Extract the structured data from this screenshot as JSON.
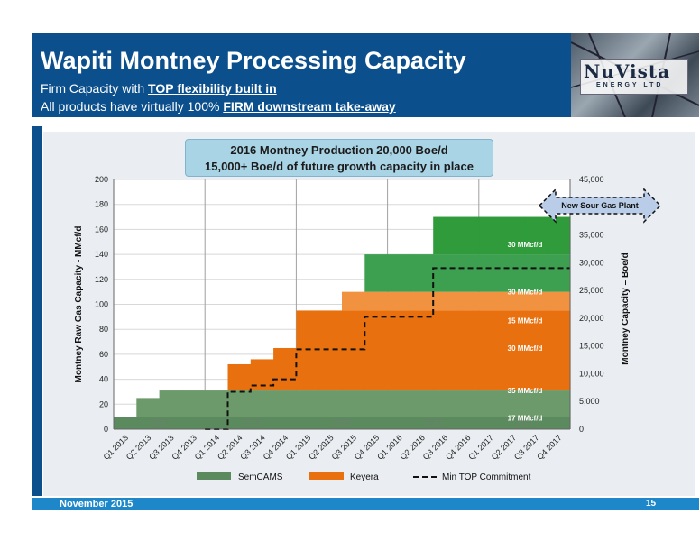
{
  "header": {
    "title": "Wapiti Montney Processing Capacity",
    "subtitle1_prefix": "Firm Capacity with ",
    "subtitle1_emph": "TOP flexibility built in",
    "subtitle2_prefix": "All products have virtually 100% ",
    "subtitle2_emph": "FIRM downstream take-away",
    "brand_color": "#0b4f8c"
  },
  "logo": {
    "main": "NuVista",
    "sub": "ENERGY LTD"
  },
  "callout": {
    "line1": "2016 Montney Production 20,000 Boe/d",
    "line2": "15,000+ Boe/d of future growth capacity in place"
  },
  "footer": {
    "date": "November 2015",
    "page": "15"
  },
  "chart_data": {
    "type": "area",
    "title": "",
    "ylabel": "Montney Raw Gas Capacity - MMcf/d",
    "y2label": "Montney Capacity – Boe/d",
    "ylim": [
      0,
      200
    ],
    "y2lim": [
      0,
      45000
    ],
    "yticks": [
      0,
      20,
      40,
      60,
      80,
      100,
      120,
      140,
      160,
      180,
      200
    ],
    "y2ticks": [
      "0",
      "5,000",
      "10,000",
      "15,000",
      "20,000",
      "25,000",
      "30,000",
      "35,000",
      "45,000"
    ],
    "y2tickvals": [
      0,
      5000,
      10000,
      15000,
      20000,
      25000,
      30000,
      35000,
      45000
    ],
    "categories": [
      "Q1 2013",
      "Q2 2013",
      "Q3 2013",
      "Q4 2013",
      "Q1 2014",
      "Q2 2014",
      "Q3 2014",
      "Q4 2014",
      "Q1 2015",
      "Q2 2015",
      "Q3 2015",
      "Q4 2015",
      "Q1 2016",
      "Q2 2016",
      "Q3 2016",
      "Q4 2016",
      "Q1 2017",
      "Q2 2017",
      "Q3 2017",
      "Q4 2017"
    ],
    "years": [
      "2013",
      "2014",
      "2015",
      "2016",
      "2017"
    ],
    "series": [
      {
        "name": "SemCAMS",
        "color": "#5b8a5e",
        "layers": [
          {
            "color": "#5b8a5e",
            "values": [
              10,
              10,
              10,
              10,
              10,
              10,
              10,
              10,
              10,
              10,
              10,
              10,
              10,
              10,
              10,
              10,
              10,
              10,
              10,
              10
            ]
          },
          {
            "color": "#6c9a6b",
            "values": [
              0,
              15,
              21,
              21,
              21,
              21,
              21,
              21,
              21,
              21,
              21,
              21,
              21,
              21,
              21,
              21,
              21,
              21,
              21,
              21
            ]
          }
        ]
      },
      {
        "name": "Keyera",
        "color": "#e8700f",
        "layers": [
          {
            "color": "#e8700f",
            "values": [
              0,
              0,
              0,
              0,
              0,
              21,
              25,
              34,
              64,
              64,
              64,
              64,
              64,
              64,
              64,
              64,
              64,
              64,
              64,
              64
            ]
          },
          {
            "color": "#f0923f",
            "values": [
              0,
              0,
              0,
              0,
              0,
              0,
              0,
              0,
              0,
              0,
              15,
              15,
              15,
              15,
              15,
              15,
              15,
              15,
              15,
              15
            ]
          },
          {
            "color": "#3da050",
            "values": [
              0,
              0,
              0,
              0,
              0,
              0,
              0,
              0,
              0,
              0,
              0,
              30,
              30,
              30,
              30,
              30,
              30,
              30,
              30,
              30
            ]
          },
          {
            "color": "#2f9b3b",
            "values": [
              0,
              0,
              0,
              0,
              0,
              0,
              0,
              0,
              0,
              0,
              0,
              0,
              0,
              0,
              30,
              30,
              30,
              30,
              30,
              30
            ]
          }
        ]
      }
    ],
    "min_top": {
      "name": "Min TOP Commitment",
      "values": [
        null,
        null,
        null,
        null,
        0,
        30,
        35,
        40,
        64,
        64,
        64,
        90,
        90,
        90,
        129,
        129,
        129,
        129,
        129,
        129
      ]
    },
    "annotations": [
      "17 MMcf/d",
      "35 MMcf/d",
      "30 MMcf/d",
      "15 MMcf/d",
      "30 MMcf/d",
      "30 MMcf/d"
    ],
    "annotation_y": [
      9,
      31,
      65,
      87,
      110,
      148
    ],
    "new_plant_label": "New Sour Gas Plant",
    "legend": [
      "SemCAMS",
      "Keyera",
      "Min TOP Commitment"
    ],
    "grid": true,
    "legend_position": "bottom"
  }
}
